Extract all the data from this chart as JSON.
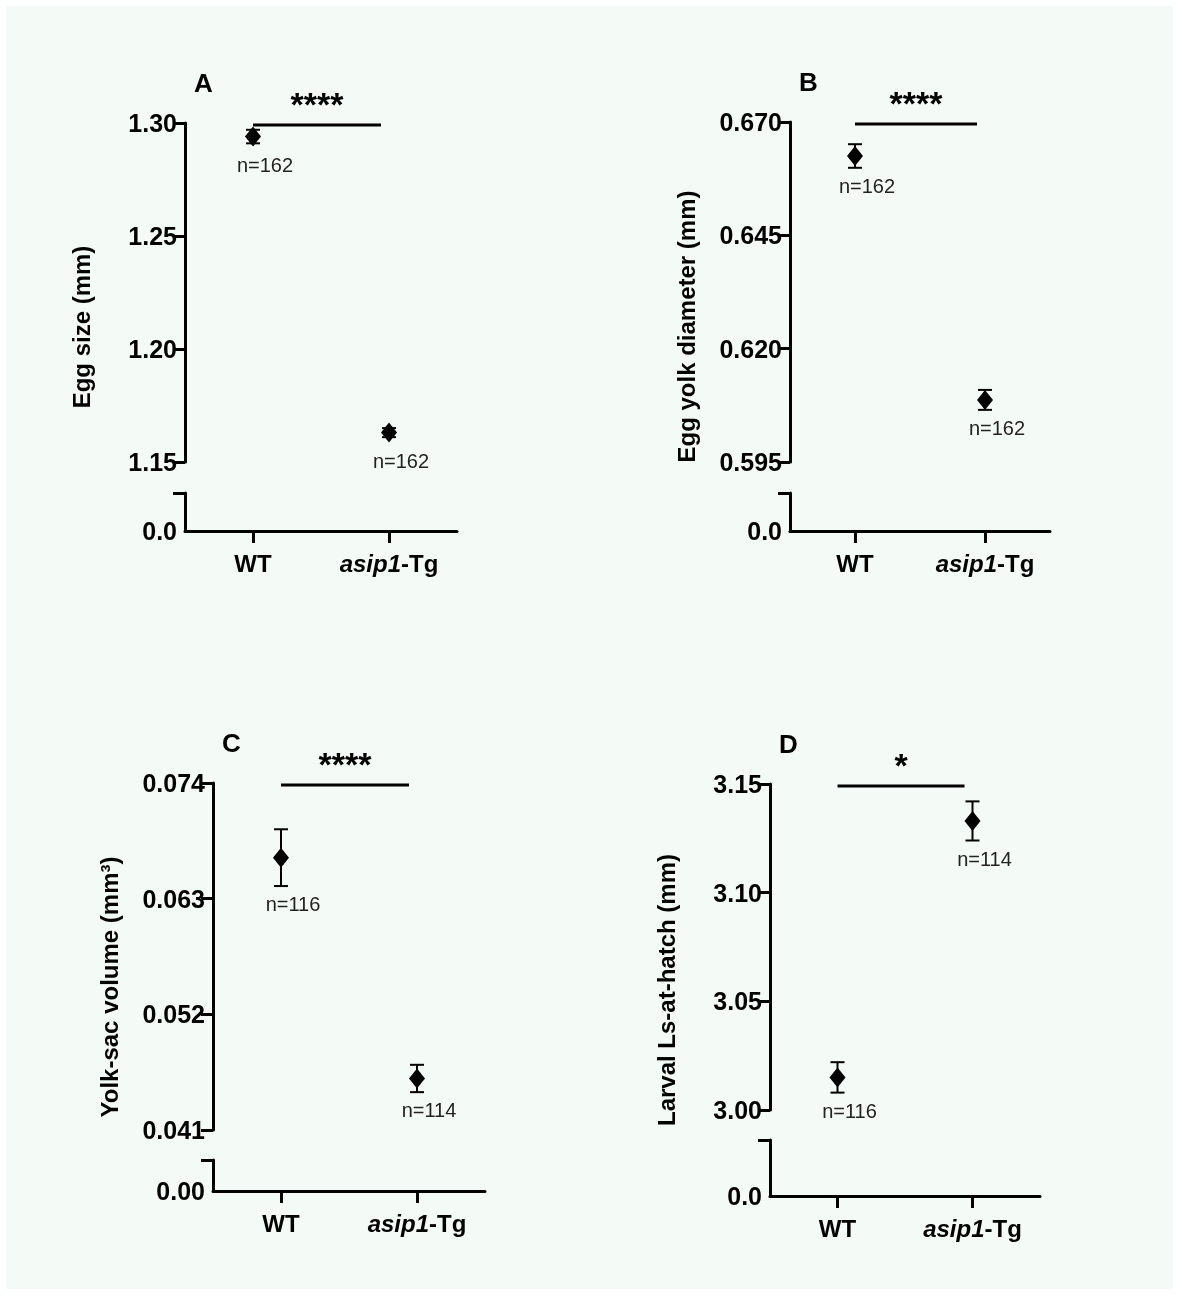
{
  "chart_data": [
    {
      "type": "scatter",
      "title": "A",
      "ylabel": "Egg size (mm)",
      "categories": [
        "WT",
        "asip1-Tg"
      ],
      "values": [
        1.294,
        1.163
      ],
      "errors": [
        0.003,
        0.002
      ],
      "color": "#000000",
      "marker": "diamond",
      "ylim": [
        1.15,
        1.3
      ],
      "yticks": [
        {
          "value": 1.15,
          "label": "1.15"
        },
        {
          "value": 1.2,
          "label": "1.20"
        },
        {
          "value": 1.25,
          "label": "1.25"
        },
        {
          "value": 1.3,
          "label": "1.30"
        }
      ],
      "grid": false,
      "annotations": [
        "****",
        "0.0",
        {
          "text": "n=162",
          "x": "WT",
          "y": 1.294
        },
        {
          "text": "n=162",
          "x": "asip1-Tg",
          "y": 1.163
        }
      ]
    },
    {
      "type": "scatter",
      "title": "B",
      "ylabel": "Egg yolk diameter (mm)",
      "categories": [
        "WT",
        "asip1-Tg"
      ],
      "values": [
        0.6625,
        0.6087
      ],
      "errors": [
        0.0026,
        0.0022
      ],
      "color": "#000000",
      "marker": "diamond",
      "ylim": [
        0.595,
        0.67
      ],
      "yticks": [
        {
          "value": 0.595,
          "label": "0.595"
        },
        {
          "value": 0.62,
          "label": "0.620"
        },
        {
          "value": 0.645,
          "label": "0.645"
        },
        {
          "value": 0.67,
          "label": "0.670"
        }
      ],
      "grid": false,
      "annotations": [
        "****",
        "0.0",
        {
          "text": "n=162",
          "x": "WT",
          "y": 0.6625
        },
        {
          "text": "n=162",
          "x": "asip1-Tg",
          "y": 0.6087
        }
      ]
    },
    {
      "type": "scatter",
      "title": "C",
      "ylabel": "Yolk-sac volume (mm³)",
      "categories": [
        "WT",
        "asip1-Tg"
      ],
      "values": [
        0.0669,
        0.0459
      ],
      "errors": [
        0.0027,
        0.0013
      ],
      "color": "#000000",
      "marker": "diamond",
      "ylim": [
        0.041,
        0.074
      ],
      "yticks": [
        {
          "value": 0.041,
          "label": "0.041"
        },
        {
          "value": 0.052,
          "label": "0.052"
        },
        {
          "value": 0.063,
          "label": "0.063"
        },
        {
          "value": 0.074,
          "label": "0.074"
        }
      ],
      "grid": false,
      "annotations": [
        "****",
        "0.00",
        {
          "text": "n=116",
          "x": "WT",
          "y": 0.0669
        },
        {
          "text": "n=114",
          "x": "asip1-Tg",
          "y": 0.0459
        }
      ]
    },
    {
      "type": "scatter",
      "title": "D",
      "ylabel": "Larval Ls-at-hatch (mm)",
      "categories": [
        "WT",
        "asip1-Tg"
      ],
      "values": [
        3.015,
        3.133
      ],
      "errors": [
        0.007,
        0.009
      ],
      "color": "#000000",
      "marker": "diamond",
      "ylim": [
        3.0,
        3.15
      ],
      "yticks": [
        {
          "value": 3.0,
          "label": "3.00"
        },
        {
          "value": 3.05,
          "label": "3.05"
        },
        {
          "value": 3.1,
          "label": "3.10"
        },
        {
          "value": 3.15,
          "label": "3.15"
        }
      ],
      "grid": false,
      "annotations": [
        "*",
        "0.0",
        {
          "text": "n=116",
          "x": "WT",
          "y": 3.015
        },
        {
          "text": "n=114",
          "x": "asip1-Tg",
          "y": 3.133
        }
      ]
    }
  ]
}
